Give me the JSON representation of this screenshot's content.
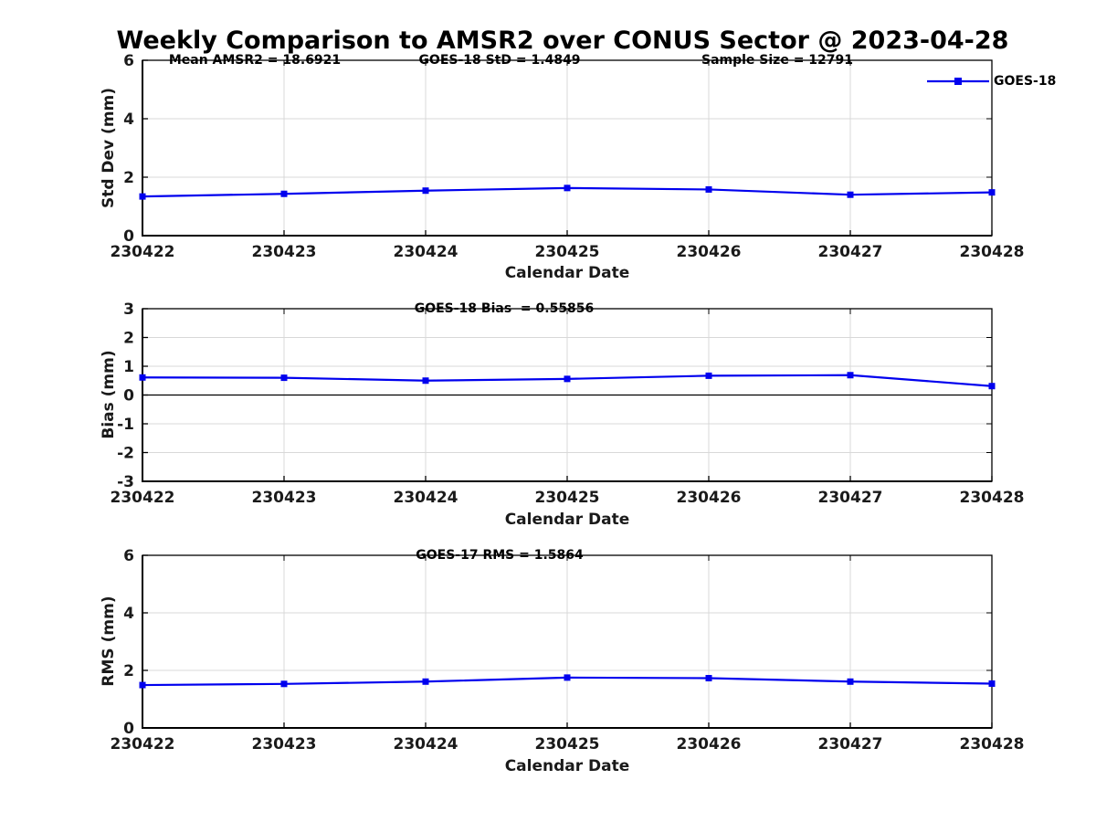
{
  "title": "Weekly Comparison to AMSR2 over CONUS Sector @ 2023-04-28",
  "colors": {
    "line": "#0000ee",
    "grid": "#d8d8d8",
    "frame": "#000000",
    "tick_label": "#1a1a1a",
    "zero_line": "#000000"
  },
  "chart_data": [
    {
      "type": "line",
      "name": "std-dev-panel",
      "title_annotations": [
        "Mean AMSR2 = 18.6921",
        "GOES-18 StD = 1.4849",
        "Sample Size = 12791"
      ],
      "categories": [
        "230422",
        "230423",
        "230424",
        "230425",
        "230426",
        "230427",
        "230428"
      ],
      "series": [
        {
          "name": "GOES-18",
          "values": [
            1.34,
            1.43,
            1.54,
            1.63,
            1.58,
            1.4,
            1.48
          ]
        }
      ],
      "xlabel": "Calendar Date",
      "ylabel": "Std Dev (mm)",
      "ylim": [
        0,
        6
      ],
      "yticks": [
        0,
        2,
        4,
        6
      ],
      "grid": true,
      "zero_line": false,
      "marker": "square",
      "legend": {
        "labels": [
          "GOES-18"
        ],
        "position": "top-right-outside"
      }
    },
    {
      "type": "line",
      "name": "bias-panel",
      "title_annotations": [
        "GOES-18 Bias  = 0.55856"
      ],
      "categories": [
        "230422",
        "230423",
        "230424",
        "230425",
        "230426",
        "230427",
        "230428"
      ],
      "series": [
        {
          "name": "GOES-18",
          "values": [
            0.61,
            0.6,
            0.5,
            0.56,
            0.67,
            0.69,
            0.31
          ]
        }
      ],
      "xlabel": "Calendar Date",
      "ylabel": "Bias (mm)",
      "ylim": [
        -3,
        3
      ],
      "yticks": [
        -3,
        -2,
        -1,
        0,
        1,
        2,
        3
      ],
      "grid": true,
      "zero_line": true,
      "marker": "square"
    },
    {
      "type": "line",
      "name": "rms-panel",
      "title_annotations": [
        "GOES-17 RMS = 1.5864"
      ],
      "categories": [
        "230422",
        "230423",
        "230424",
        "230425",
        "230426",
        "230427",
        "230428"
      ],
      "series": [
        {
          "name": "GOES-18",
          "values": [
            1.49,
            1.53,
            1.61,
            1.75,
            1.73,
            1.61,
            1.54
          ]
        }
      ],
      "xlabel": "Calendar Date",
      "ylabel": "RMS (mm)",
      "ylim": [
        0,
        6
      ],
      "yticks": [
        0,
        2,
        4,
        6
      ],
      "grid": true,
      "zero_line": false,
      "marker": "square"
    }
  ]
}
